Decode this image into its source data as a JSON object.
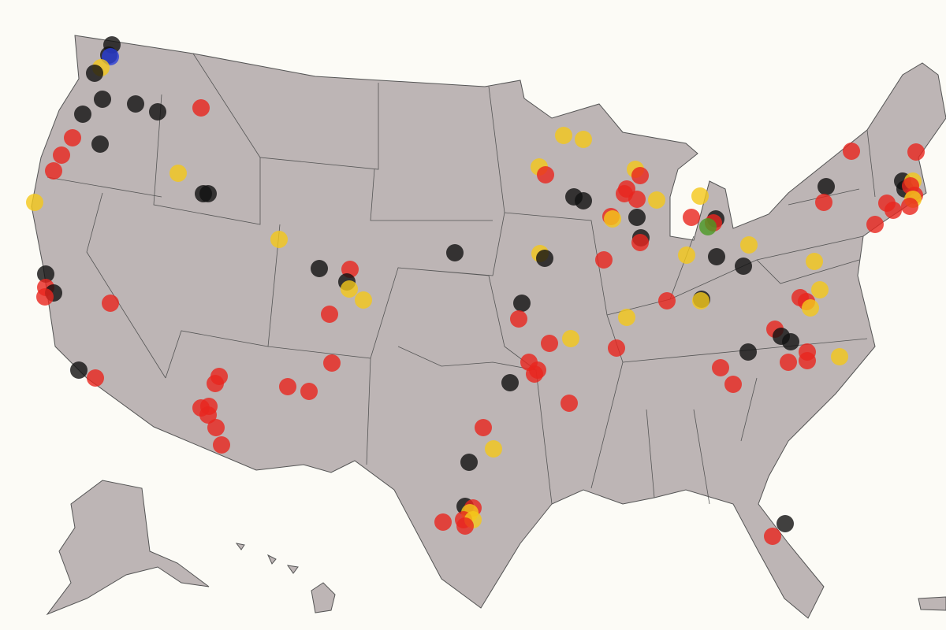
{
  "palette": [
    "#111111",
    "#e8261e",
    "#f4c81a",
    "#2a3ed8",
    "#4a9a24"
  ]
}
